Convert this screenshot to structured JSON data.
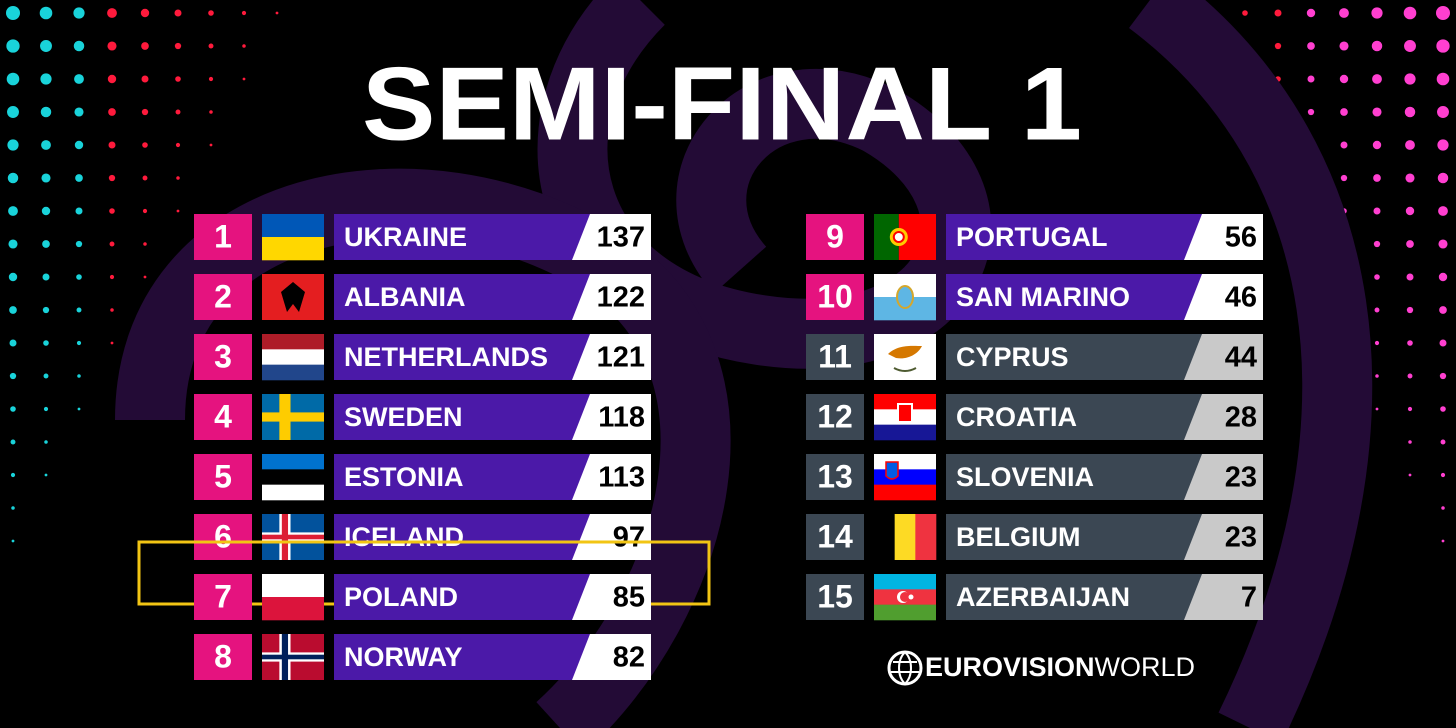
{
  "title": "SEMI-FINAL 1",
  "rows": [
    {
      "rank": 1,
      "country": "UKRAINE",
      "points": 137,
      "qualified": true,
      "highlighted": false
    },
    {
      "rank": 2,
      "country": "ALBANIA",
      "points": 122,
      "qualified": true,
      "highlighted": false
    },
    {
      "rank": 3,
      "country": "NETHERLANDS",
      "points": 121,
      "qualified": true,
      "highlighted": false
    },
    {
      "rank": 4,
      "country": "SWEDEN",
      "points": 118,
      "qualified": true,
      "highlighted": false
    },
    {
      "rank": 5,
      "country": "ESTONIA",
      "points": 113,
      "qualified": true,
      "highlighted": false
    },
    {
      "rank": 6,
      "country": "ICELAND",
      "points": 97,
      "qualified": true,
      "highlighted": false
    },
    {
      "rank": 7,
      "country": "POLAND",
      "points": 85,
      "qualified": true,
      "highlighted": true
    },
    {
      "rank": 8,
      "country": "NORWAY",
      "points": 82,
      "qualified": true,
      "highlighted": false
    },
    {
      "rank": 9,
      "country": "PORTUGAL",
      "points": 56,
      "qualified": true,
      "highlighted": false
    },
    {
      "rank": 10,
      "country": "SAN MARINO",
      "points": 46,
      "qualified": true,
      "highlighted": false
    },
    {
      "rank": 11,
      "country": "CYPRUS",
      "points": 44,
      "qualified": false,
      "highlighted": false
    },
    {
      "rank": 12,
      "country": "CROATIA",
      "points": 28,
      "qualified": false,
      "highlighted": false
    },
    {
      "rank": 13,
      "country": "SLOVENIA",
      "points": 23,
      "qualified": false,
      "highlighted": false
    },
    {
      "rank": 14,
      "country": "BELGIUM",
      "points": 23,
      "qualified": false,
      "highlighted": false
    },
    {
      "rank": 15,
      "country": "AZERBAIJAN",
      "points": 7,
      "qualified": false,
      "highlighted": false
    }
  ],
  "logo": {
    "bold": "EUROVISION",
    "light": "WORLD"
  }
}
